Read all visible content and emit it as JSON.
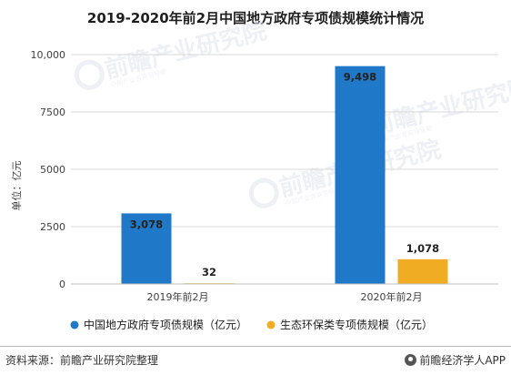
{
  "title": "2019-2020年前2月中国地方政府专项债规模统计情况",
  "footer": {
    "source": "资料来源：前瞻产业研究院整理",
    "brand": "前瞻经济学人APP",
    "brand_icon": "qianzhan-logo-icon"
  },
  "watermark": {
    "text": "前瞻产业研究院",
    "subtext": "中国产业咨询领导者"
  },
  "chart_data": {
    "type": "bar",
    "categories": [
      "2019年前2月",
      "2020年前2月"
    ],
    "series": [
      {
        "name": "中国地方政府专项债规模（亿元）",
        "values": [
          3078,
          9498
        ],
        "labels": [
          "3,078",
          "9,498"
        ],
        "color": "#1f78c8"
      },
      {
        "name": "生态环保类专项债规模（亿元）",
        "values": [
          32,
          1078
        ],
        "labels": [
          "32",
          "1,078"
        ],
        "color": "#f0ac23"
      }
    ],
    "ylabel": "单位：亿元",
    "ylim": [
      0,
      10000
    ],
    "yticks": [
      0,
      2500,
      5000,
      7500,
      10000
    ],
    "ytick_labels": [
      "0",
      "2500",
      "5000",
      "7500",
      "10,000"
    ],
    "grid": true,
    "legend": "bottom"
  }
}
